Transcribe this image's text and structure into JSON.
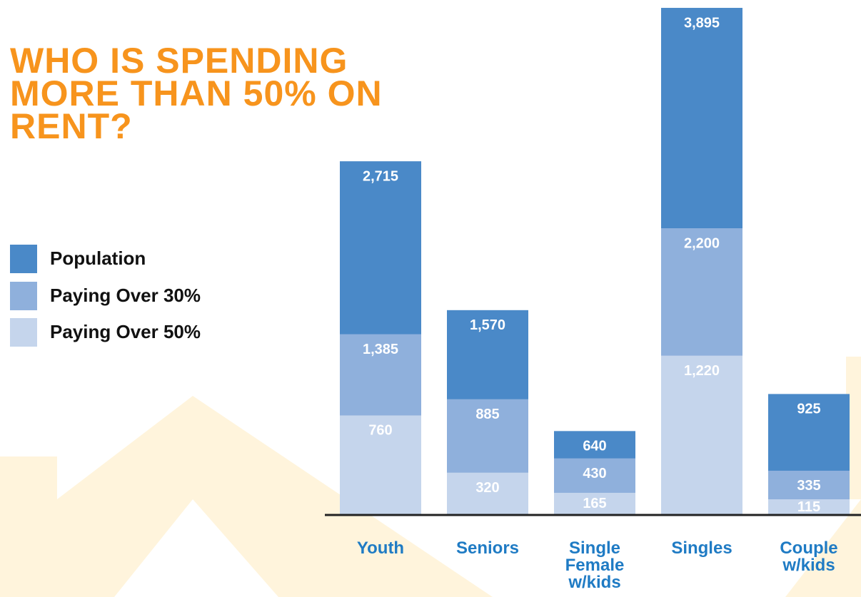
{
  "chart_data": {
    "type": "bar",
    "barmode": "overlay",
    "title": "WHO IS SPENDING MORE THAN 50% ON RENT?",
    "categories": [
      "Youth",
      "Seniors",
      "Single Female w/kids",
      "Singles",
      "Couple w/kids"
    ],
    "series": [
      {
        "name": "Population",
        "color": "#4a89c8",
        "values": [
          2715,
          1570,
          640,
          3895,
          925
        ],
        "value_labels": [
          "2,715",
          "1,570",
          "640",
          "3,895",
          "925"
        ]
      },
      {
        "name": "Paying Over 30%",
        "color": "#8fb0dc",
        "values": [
          1385,
          885,
          430,
          2200,
          335
        ],
        "value_labels": [
          "1,385",
          "885",
          "430",
          "2,200",
          "335"
        ]
      },
      {
        "name": "Paying Over 50%",
        "color": "#c5d5ec",
        "values": [
          760,
          320,
          165,
          1220,
          115
        ],
        "value_labels": [
          "760",
          "320",
          "165",
          "1,220",
          "115"
        ]
      }
    ],
    "ylim": [
      0,
      3950
    ],
    "legend": "left"
  }
}
